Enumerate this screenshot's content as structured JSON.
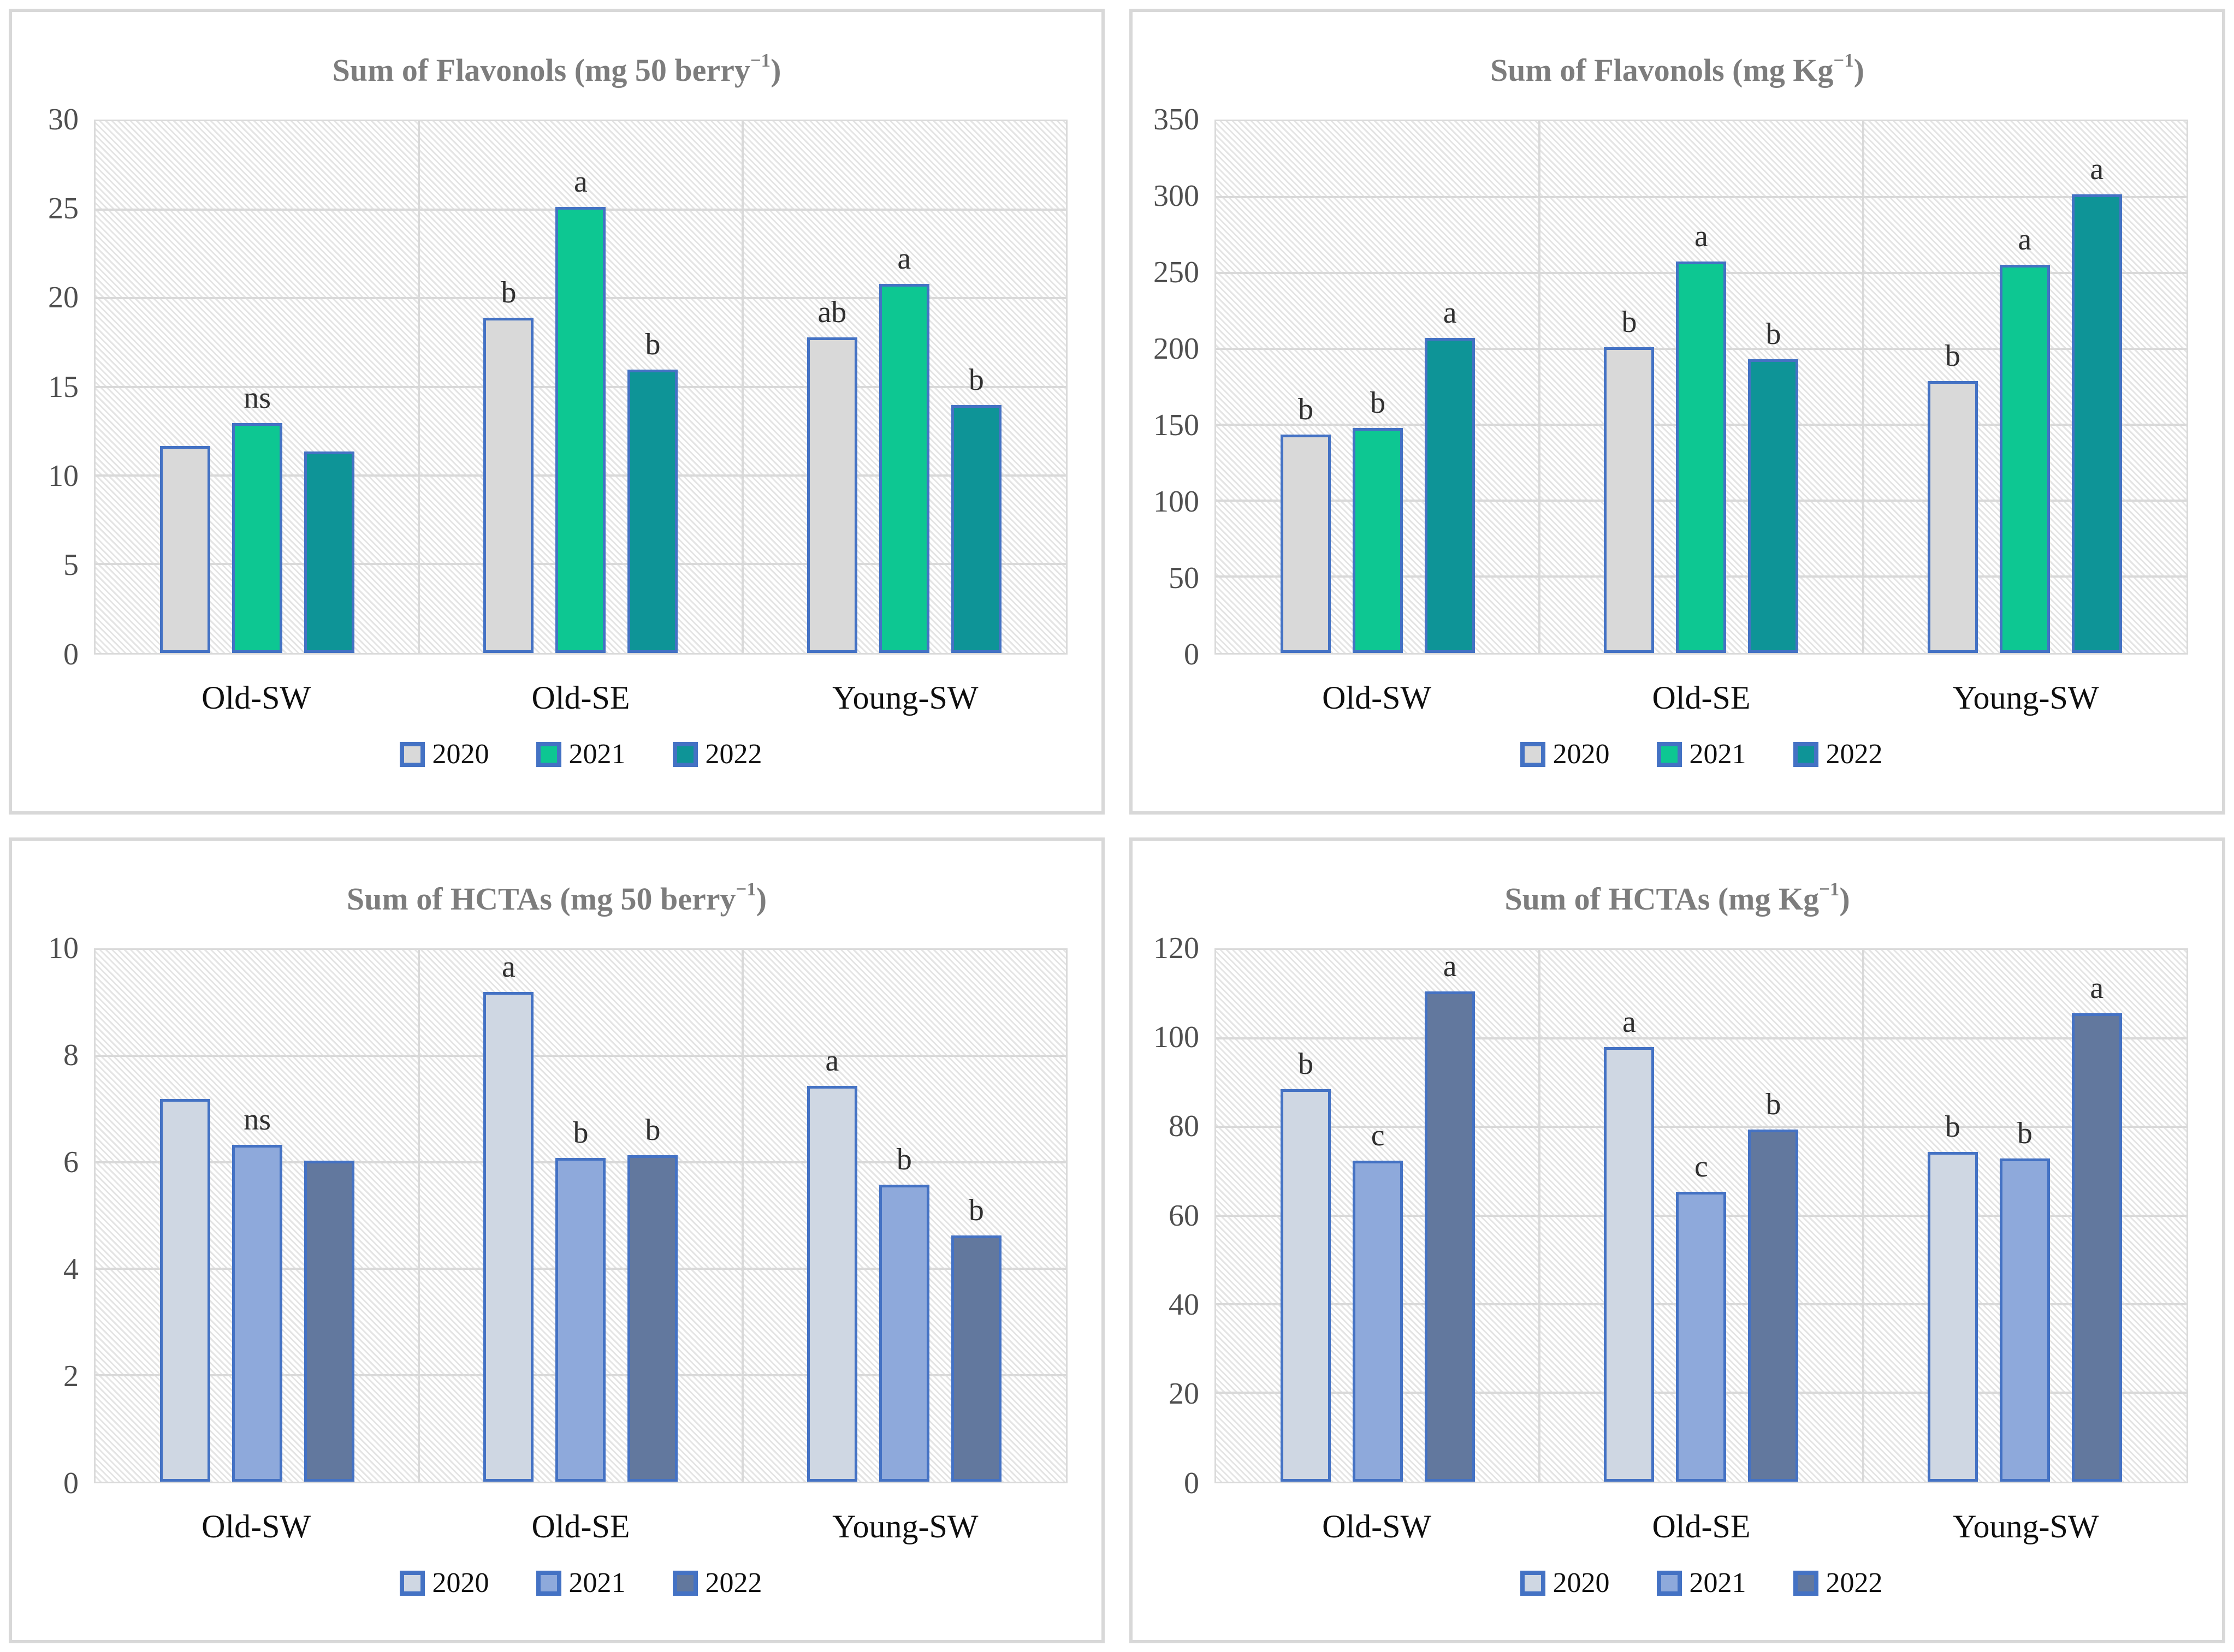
{
  "style": {
    "bar_border_color": "#4472C4",
    "grid_color": "#D9D9D9",
    "hatch_line_color": "#E4E4E4",
    "panel_border_color": "#D8D8D8",
    "title_color": "#7D7D7D",
    "tick_label_color": "#4F4F4F",
    "category_label_color": "#0F0F0F",
    "sig_label_color": "#2F2F2F"
  },
  "chart_data": [
    {
      "id": "flavonols-per-berry",
      "type": "bar",
      "title": "Sum of Flavonols (mg 50 berry⁻¹)",
      "categories": [
        "Old-SW",
        "Old-SE",
        "Young-SW"
      ],
      "ylim": [
        0,
        30
      ],
      "yticks": [
        0,
        5,
        10,
        15,
        20,
        25,
        30
      ],
      "grid": true,
      "legend_position": "bottom",
      "series": [
        {
          "name": "2020",
          "color": "#D9D9D9",
          "values": [
            11.6,
            18.8,
            17.7
          ]
        },
        {
          "name": "2021",
          "color": "#0DC792",
          "values": [
            12.9,
            25.0,
            20.7
          ]
        },
        {
          "name": "2022",
          "color": "#0E9497",
          "values": [
            11.3,
            15.9,
            13.9
          ]
        }
      ],
      "sig_labels": [
        [
          "",
          "ns",
          ""
        ],
        [
          "b",
          "a",
          "b"
        ],
        [
          "ab",
          "a",
          "b"
        ]
      ]
    },
    {
      "id": "flavonols-per-kg",
      "type": "bar",
      "title": "Sum of Flavonols (mg Kg⁻¹)",
      "categories": [
        "Old-SW",
        "Old-SE",
        "Young-SW"
      ],
      "ylim": [
        0,
        350
      ],
      "yticks": [
        0,
        50,
        100,
        150,
        200,
        250,
        300,
        350
      ],
      "grid": true,
      "legend_position": "bottom",
      "series": [
        {
          "name": "2020",
          "color": "#D9D9D9",
          "values": [
            143,
            200,
            178
          ]
        },
        {
          "name": "2021",
          "color": "#0DC792",
          "values": [
            147,
            256,
            254
          ]
        },
        {
          "name": "2022",
          "color": "#0E9497",
          "values": [
            206,
            192,
            300
          ]
        }
      ],
      "sig_labels": [
        [
          "b",
          "b",
          "a"
        ],
        [
          "b",
          "a",
          "b"
        ],
        [
          "b",
          "a",
          "a"
        ]
      ]
    },
    {
      "id": "hctas-per-berry",
      "type": "bar",
      "title": "Sum of HCTAs (mg 50 berry⁻¹)",
      "categories": [
        "Old-SW",
        "Old-SE",
        "Young-SW"
      ],
      "ylim": [
        0,
        10
      ],
      "yticks": [
        0,
        2,
        4,
        6,
        8,
        10
      ],
      "grid": true,
      "legend_position": "bottom",
      "series": [
        {
          "name": "2020",
          "color": "#CFD7E3",
          "values": [
            7.15,
            9.15,
            7.4
          ]
        },
        {
          "name": "2021",
          "color": "#8EA9DB",
          "values": [
            6.3,
            6.05,
            5.55
          ]
        },
        {
          "name": "2022",
          "color": "#62789E",
          "values": [
            6.0,
            6.1,
            4.6
          ]
        }
      ],
      "sig_labels": [
        [
          "",
          "ns",
          ""
        ],
        [
          "a",
          "b",
          "b"
        ],
        [
          "a",
          "b",
          "b"
        ]
      ]
    },
    {
      "id": "hctas-per-kg",
      "type": "bar",
      "title": "Sum of HCTAs (mg Kg⁻¹)",
      "categories": [
        "Old-SW",
        "Old-SE",
        "Young-SW"
      ],
      "ylim": [
        0,
        120
      ],
      "yticks": [
        0,
        20,
        40,
        60,
        80,
        100,
        120
      ],
      "grid": true,
      "legend_position": "bottom",
      "series": [
        {
          "name": "2020",
          "color": "#CFD7E3",
          "values": [
            88,
            97.5,
            74
          ]
        },
        {
          "name": "2021",
          "color": "#8EA9DB",
          "values": [
            72,
            65,
            72.5
          ]
        },
        {
          "name": "2022",
          "color": "#62789E",
          "values": [
            110,
            79,
            105
          ]
        }
      ],
      "sig_labels": [
        [
          "b",
          "c",
          "a"
        ],
        [
          "a",
          "c",
          "b"
        ],
        [
          "b",
          "b",
          "a"
        ]
      ]
    }
  ]
}
